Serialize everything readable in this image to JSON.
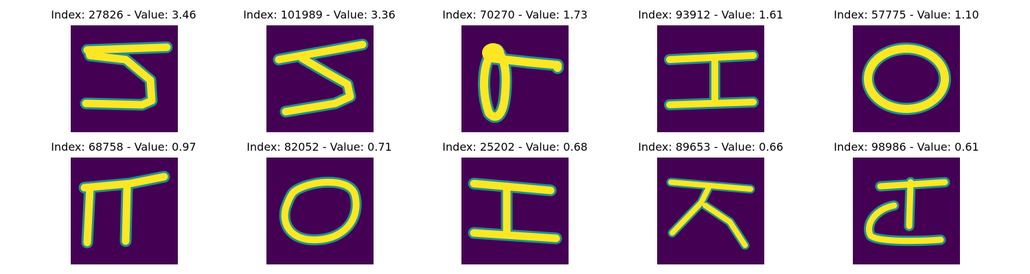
{
  "colors": {
    "background": "#440154",
    "stroke_edge": "#21918c",
    "stroke_core": "#fde725"
  },
  "panels": [
    {
      "index_label": "Index: 27826 - Value: 3.46",
      "glyph": "glyph-5-icon"
    },
    {
      "index_label": "Index: 101989 - Value: 3.36",
      "glyph": "glyph-s-icon"
    },
    {
      "index_label": "Index: 70270 - Value: 1.73",
      "glyph": "glyph-loop-icon"
    },
    {
      "index_label": "Index: 93912 - Value: 1.61",
      "glyph": "glyph-i-icon"
    },
    {
      "index_label": "Index: 57775 - Value: 1.10",
      "glyph": "glyph-o-icon"
    },
    {
      "index_label": "Index: 68758 - Value: 0.97",
      "glyph": "glyph-pi-icon"
    },
    {
      "index_label": "Index: 82052 - Value: 0.71",
      "glyph": "glyph-o-icon"
    },
    {
      "index_label": "Index: 25202 - Value: 0.68",
      "glyph": "glyph-i-icon"
    },
    {
      "index_label": "Index: 89653 - Value: 0.66",
      "glyph": "glyph-ja-icon"
    },
    {
      "index_label": "Index: 98986 - Value: 0.61",
      "glyph": "glyph-d-icon"
    }
  ]
}
